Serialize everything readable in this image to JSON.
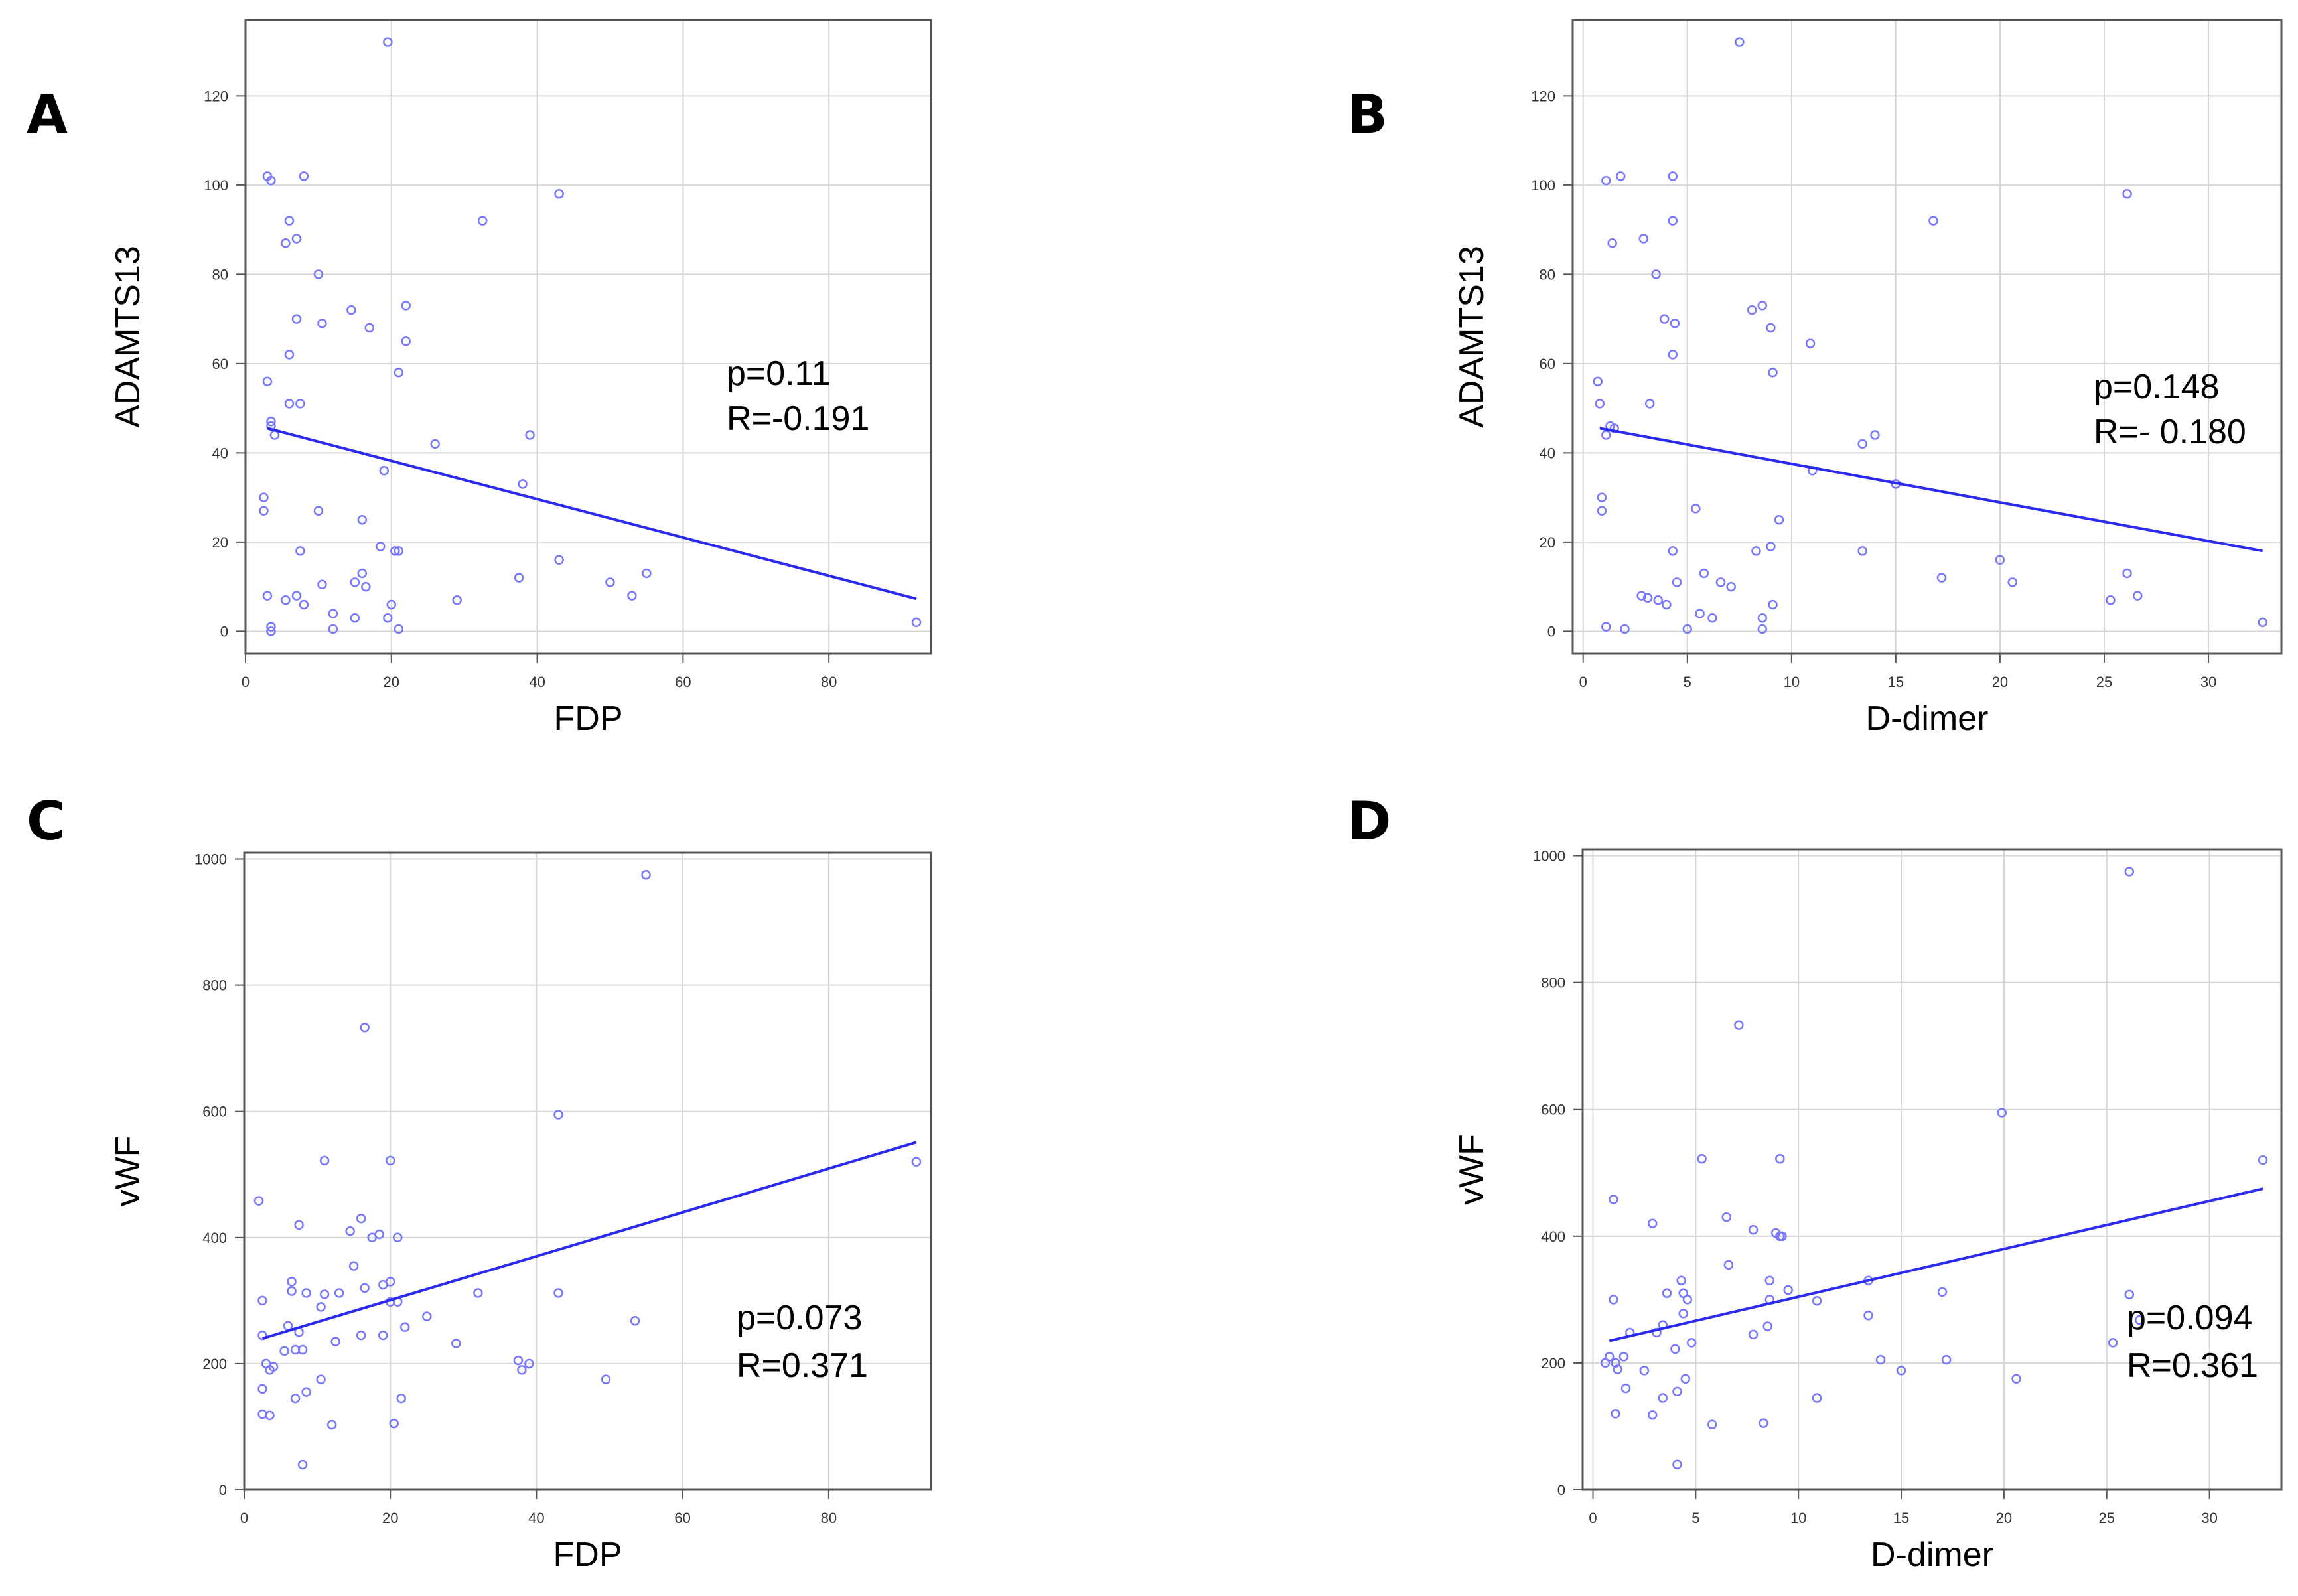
{
  "chart_data": [
    {
      "panel": "A",
      "type": "scatter",
      "xlabel": "FDP",
      "ylabel": "ADAMTS13",
      "xlim": [
        0,
        94
      ],
      "ylim": [
        -5,
        137
      ],
      "xticks": [
        0,
        20,
        40,
        60,
        80
      ],
      "yticks": [
        0,
        20,
        40,
        60,
        80,
        100,
        120
      ],
      "grid": true,
      "annotation": [
        "p=0.11",
        "R=-0.191"
      ],
      "fit_line": {
        "x": [
          3,
          92
        ],
        "y": [
          45.5,
          7.3
        ]
      },
      "points": [
        [
          19.5,
          132
        ],
        [
          3,
          102
        ],
        [
          3.5,
          101
        ],
        [
          8,
          102
        ],
        [
          43,
          98
        ],
        [
          6,
          92
        ],
        [
          32.5,
          92
        ],
        [
          7,
          88
        ],
        [
          5.5,
          87
        ],
        [
          10,
          80
        ],
        [
          3.5,
          47
        ],
        [
          4,
          44
        ],
        [
          7,
          70
        ],
        [
          14.5,
          72
        ],
        [
          17,
          68
        ],
        [
          22,
          73
        ],
        [
          6,
          62
        ],
        [
          10.5,
          69
        ],
        [
          22,
          65
        ],
        [
          3,
          56
        ],
        [
          6,
          51
        ],
        [
          7.5,
          51
        ],
        [
          21,
          58
        ],
        [
          26,
          42
        ],
        [
          39,
          44
        ],
        [
          3.5,
          46
        ],
        [
          2.5,
          30
        ],
        [
          2.5,
          27
        ],
        [
          10,
          27
        ],
        [
          16,
          25
        ],
        [
          19,
          36
        ],
        [
          38,
          33
        ],
        [
          21,
          18
        ],
        [
          20.5,
          18
        ],
        [
          18.5,
          19
        ],
        [
          16,
          13
        ],
        [
          16.5,
          10
        ],
        [
          15,
          11
        ],
        [
          37.5,
          12
        ],
        [
          43,
          16
        ],
        [
          50,
          11
        ],
        [
          55,
          13
        ],
        [
          53,
          8
        ],
        [
          7.5,
          18
        ],
        [
          3,
          8
        ],
        [
          5.5,
          7
        ],
        [
          7,
          8
        ],
        [
          8,
          6
        ],
        [
          12,
          4
        ],
        [
          15,
          3
        ],
        [
          19.5,
          3
        ],
        [
          20,
          6
        ],
        [
          29,
          7
        ],
        [
          3.5,
          1
        ],
        [
          3.5,
          0
        ],
        [
          12,
          0.5
        ],
        [
          21,
          0.5
        ],
        [
          10.5,
          10.5
        ],
        [
          92,
          2
        ]
      ]
    },
    {
      "panel": "B",
      "type": "scatter",
      "xlabel": "D-dimer",
      "ylabel": "ADAMTS13",
      "xlim": [
        -0.5,
        33.5
      ],
      "ylim": [
        -5,
        137
      ],
      "xticks": [
        0,
        5,
        10,
        15,
        20,
        25,
        30
      ],
      "yticks": [
        0,
        20,
        40,
        60,
        80,
        100,
        120
      ],
      "grid": true,
      "annotation": [
        "p=0.148",
        "R=- 0.180"
      ],
      "fit_line": {
        "x": [
          0.8,
          32.6
        ],
        "y": [
          45.5,
          18
        ]
      },
      "points": [
        [
          7.5,
          132
        ],
        [
          1.8,
          102
        ],
        [
          4.3,
          102
        ],
        [
          1.1,
          101
        ],
        [
          26.1,
          98
        ],
        [
          4.3,
          92
        ],
        [
          16.8,
          92
        ],
        [
          2.9,
          88
        ],
        [
          1.4,
          87
        ],
        [
          3.5,
          80
        ],
        [
          3.9,
          70
        ],
        [
          4.4,
          69
        ],
        [
          8.1,
          72
        ],
        [
          8.6,
          73
        ],
        [
          9,
          68
        ],
        [
          10.9,
          64.5
        ],
        [
          4.3,
          62
        ],
        [
          0.7,
          56
        ],
        [
          0.8,
          51
        ],
        [
          3.2,
          51
        ],
        [
          9.1,
          58
        ],
        [
          1.3,
          46
        ],
        [
          1.5,
          45.5
        ],
        [
          1.1,
          44
        ],
        [
          14,
          44
        ],
        [
          13.4,
          42
        ],
        [
          0.9,
          30
        ],
        [
          0.9,
          27
        ],
        [
          5.4,
          27.5
        ],
        [
          9.4,
          25
        ],
        [
          15,
          33
        ],
        [
          11,
          36
        ],
        [
          4.3,
          18
        ],
        [
          8.3,
          18
        ],
        [
          13.4,
          18
        ],
        [
          9,
          19
        ],
        [
          5.8,
          13
        ],
        [
          6.6,
          11
        ],
        [
          7.1,
          10
        ],
        [
          4.5,
          11
        ],
        [
          17.2,
          12
        ],
        [
          20,
          16
        ],
        [
          20.6,
          11
        ],
        [
          26.1,
          13
        ],
        [
          26.6,
          8
        ],
        [
          25.3,
          7
        ],
        [
          2.8,
          8
        ],
        [
          3.1,
          7.5
        ],
        [
          3.6,
          7
        ],
        [
          4,
          6
        ],
        [
          5.6,
          4
        ],
        [
          6.2,
          3
        ],
        [
          8.6,
          3
        ],
        [
          9.1,
          6
        ],
        [
          1.1,
          1
        ],
        [
          2,
          0.5
        ],
        [
          5,
          0.5
        ],
        [
          8.6,
          0.5
        ],
        [
          32.6,
          2
        ]
      ]
    },
    {
      "panel": "C",
      "type": "scatter",
      "xlabel": "FDP",
      "ylabel": "vWF",
      "xlim": [
        0,
        94
      ],
      "ylim": [
        0,
        1010
      ],
      "xticks": [
        0,
        20,
        40,
        60,
        80
      ],
      "yticks": [
        0,
        200,
        400,
        600,
        800,
        1000
      ],
      "grid": true,
      "annotation": [
        "p=0.073",
        "R=0.371"
      ],
      "fit_line": {
        "x": [
          2.5,
          92
        ],
        "y": [
          240,
          551
        ]
      },
      "points": [
        [
          55,
          975
        ],
        [
          16.5,
          733
        ],
        [
          43,
          595
        ],
        [
          11,
          522
        ],
        [
          20,
          522
        ],
        [
          92,
          520
        ],
        [
          2,
          458
        ],
        [
          7.5,
          420
        ],
        [
          16,
          430
        ],
        [
          14.5,
          410
        ],
        [
          18.5,
          405
        ],
        [
          17.5,
          400
        ],
        [
          21,
          400
        ],
        [
          15,
          355
        ],
        [
          6.5,
          330
        ],
        [
          20,
          330
        ],
        [
          16.5,
          320
        ],
        [
          19,
          325
        ],
        [
          6.5,
          315
        ],
        [
          11,
          310
        ],
        [
          8.5,
          312
        ],
        [
          13,
          312
        ],
        [
          32,
          312
        ],
        [
          43,
          312
        ],
        [
          2.5,
          300
        ],
        [
          10.5,
          290
        ],
        [
          20,
          298
        ],
        [
          21,
          298
        ],
        [
          25,
          275
        ],
        [
          2.5,
          245
        ],
        [
          6,
          260
        ],
        [
          7.5,
          250
        ],
        [
          16,
          245
        ],
        [
          19,
          245
        ],
        [
          22,
          258
        ],
        [
          29,
          232
        ],
        [
          12.5,
          235
        ],
        [
          7,
          222
        ],
        [
          5.5,
          220
        ],
        [
          3,
          200
        ],
        [
          3.5,
          190
        ],
        [
          4,
          195
        ],
        [
          8,
          222
        ],
        [
          2.5,
          160
        ],
        [
          7,
          145
        ],
        [
          8.5,
          155
        ],
        [
          10.5,
          175
        ],
        [
          21.5,
          145
        ],
        [
          37.5,
          205
        ],
        [
          38,
          190
        ],
        [
          39,
          200
        ],
        [
          49.5,
          175
        ],
        [
          53.5,
          268
        ],
        [
          2.5,
          120
        ],
        [
          3.5,
          118
        ],
        [
          12,
          103
        ],
        [
          20.5,
          105
        ],
        [
          8,
          40
        ]
      ]
    },
    {
      "panel": "D",
      "type": "scatter",
      "xlabel": "D-dimer",
      "ylabel": "vWF",
      "xlim": [
        -0.5,
        33.5
      ],
      "ylim": [
        0,
        1010
      ],
      "xticks": [
        0,
        5,
        10,
        15,
        20,
        25,
        30
      ],
      "yticks": [
        0,
        200,
        400,
        600,
        800,
        1000
      ],
      "grid": true,
      "annotation": [
        "p=0.094",
        "R=0.361"
      ],
      "fit_line": {
        "x": [
          0.8,
          32.6
        ],
        "y": [
          235,
          475
        ]
      },
      "points": [
        [
          26.1,
          975
        ],
        [
          7.1,
          733
        ],
        [
          19.9,
          595
        ],
        [
          5.3,
          522
        ],
        [
          9.1,
          522
        ],
        [
          32.6,
          520
        ],
        [
          1,
          458
        ],
        [
          2.9,
          420
        ],
        [
          6.5,
          430
        ],
        [
          7.8,
          410
        ],
        [
          8.9,
          405
        ],
        [
          9.1,
          400
        ],
        [
          9.2,
          400
        ],
        [
          6.6,
          355
        ],
        [
          3.6,
          310
        ],
        [
          4.3,
          330
        ],
        [
          4.4,
          310
        ],
        [
          8.6,
          330
        ],
        [
          9.5,
          315
        ],
        [
          17,
          312
        ],
        [
          26.1,
          308
        ],
        [
          1,
          300
        ],
        [
          4.6,
          300
        ],
        [
          8.6,
          300
        ],
        [
          10.9,
          298
        ],
        [
          13.4,
          330
        ],
        [
          1.8,
          248
        ],
        [
          3.1,
          248
        ],
        [
          3.4,
          260
        ],
        [
          4.4,
          278
        ],
        [
          4.8,
          232
        ],
        [
          7.8,
          245
        ],
        [
          8.5,
          258
        ],
        [
          13.4,
          275
        ],
        [
          25.3,
          232
        ],
        [
          26.6,
          268
        ],
        [
          0.8,
          210
        ],
        [
          1.1,
          200
        ],
        [
          1.5,
          210
        ],
        [
          4,
          222
        ],
        [
          0.6,
          200
        ],
        [
          1.2,
          190
        ],
        [
          2.5,
          188
        ],
        [
          14,
          205
        ],
        [
          17.2,
          205
        ],
        [
          15,
          188
        ],
        [
          20.6,
          175
        ],
        [
          1.6,
          160
        ],
        [
          3.4,
          145
        ],
        [
          4.1,
          155
        ],
        [
          4.5,
          175
        ],
        [
          10.9,
          145
        ],
        [
          1.1,
          120
        ],
        [
          2.9,
          118
        ],
        [
          5.8,
          103
        ],
        [
          8.3,
          105
        ],
        [
          4.1,
          40
        ]
      ]
    }
  ],
  "colors": {
    "points": "#7777ff",
    "fit_line": "#2a2af0",
    "grid": "#d6d6d6",
    "frame": "#555555",
    "text": "#000000"
  }
}
